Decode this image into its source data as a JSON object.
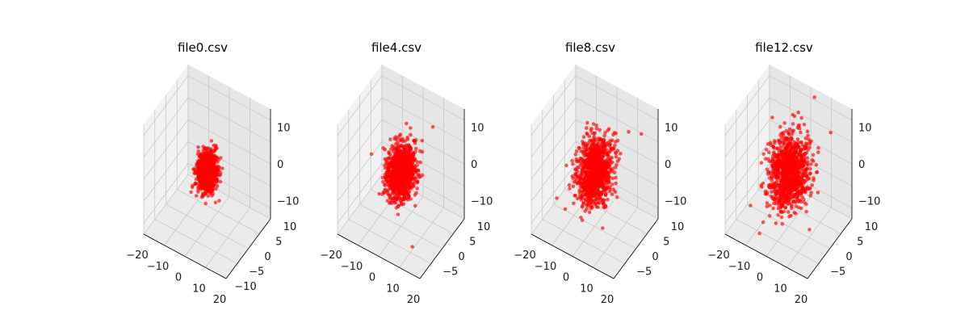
{
  "colors": {
    "points": "#ff0000",
    "pane_left": "#f2f2f2",
    "pane_right": "#e6e6e6",
    "pane_floor": "#ebebeb",
    "grid": "#c8c8c8",
    "axis": "#000000"
  },
  "chart_data": [
    {
      "type": "scatter",
      "title": "file0.csv",
      "xlim": [
        -20,
        20
      ],
      "ylim": [
        -10,
        10
      ],
      "zlim": [
        -15,
        15
      ],
      "xticks": [
        "−20",
        "−10",
        "0",
        "10",
        "20"
      ],
      "yticks": [
        "−10",
        "−5",
        "0",
        "5",
        "10"
      ],
      "zticks": [
        "−10",
        "0",
        "10"
      ],
      "grid": true,
      "point_cloud": {
        "center": [
          0,
          0,
          0
        ],
        "spread": [
          1.8,
          1.5,
          2.4
        ],
        "count": 1000,
        "outliers": []
      }
    },
    {
      "type": "scatter",
      "title": "file4.csv",
      "xlim": [
        -20,
        20
      ],
      "ylim": [
        -10,
        10
      ],
      "zlim": [
        -15,
        15
      ],
      "xticks": [
        "−20",
        "−10",
        "0",
        "10",
        "20"
      ],
      "yticks": [
        "−5",
        "0",
        "5",
        "10"
      ],
      "zticks": [
        "−10",
        "0",
        "10"
      ],
      "grid": true,
      "point_cloud": {
        "center": [
          0,
          0,
          0
        ],
        "spread": [
          2.6,
          2.2,
          3.4
        ],
        "count": 1000,
        "outliers": [
          [
            9,
            6,
            10
          ],
          [
            -10,
            -4,
            5
          ],
          [
            12,
            -6,
            -12
          ],
          [
            -3,
            2,
            -9
          ],
          [
            6,
            4,
            7
          ],
          [
            -6,
            -2,
            -6
          ]
        ]
      }
    },
    {
      "type": "scatter",
      "title": "file8.csv",
      "xlim": [
        -20,
        20
      ],
      "ylim": [
        -10,
        10
      ],
      "zlim": [
        -15,
        15
      ],
      "xticks": [
        "−20",
        "−10",
        "0",
        "10",
        "20"
      ],
      "yticks": [
        "−5",
        "0",
        "5",
        "10"
      ],
      "zticks": [
        "−10",
        "0",
        "10"
      ],
      "grid": true,
      "point_cloud": {
        "center": [
          0,
          0,
          0
        ],
        "spread": [
          3.2,
          2.6,
          4.0
        ],
        "count": 1000,
        "outliers": [
          [
            10,
            6,
            9
          ],
          [
            14,
            8,
            8
          ],
          [
            -6,
            2,
            7
          ],
          [
            -12,
            -6,
            -6
          ],
          [
            -10,
            -4,
            -10
          ],
          [
            6,
            -2,
            -12
          ],
          [
            -4,
            4,
            -9
          ],
          [
            8,
            2,
            6
          ]
        ]
      }
    },
    {
      "type": "scatter",
      "title": "file12.csv",
      "xlim": [
        -20,
        20
      ],
      "ylim": [
        -10,
        10
      ],
      "zlim": [
        -15,
        15
      ],
      "xticks": [
        "−20",
        "−10",
        "0",
        "10",
        "20"
      ],
      "yticks": [
        "−5",
        "0",
        "5",
        "10"
      ],
      "zticks": [
        "−10",
        "0",
        "10"
      ],
      "grid": true,
      "point_cloud": {
        "center": [
          0,
          0,
          0
        ],
        "spread": [
          3.8,
          3.0,
          4.6
        ],
        "count": 1000,
        "outliers": [
          [
            4,
            8,
            15
          ],
          [
            14,
            6,
            10
          ],
          [
            12,
            -4,
            7
          ],
          [
            -12,
            -6,
            -8
          ],
          [
            -8,
            -4,
            -13
          ],
          [
            -10,
            2,
            -12
          ],
          [
            -2,
            4,
            -12
          ],
          [
            8,
            6,
            4
          ],
          [
            2,
            4,
            12
          ]
        ]
      }
    }
  ]
}
